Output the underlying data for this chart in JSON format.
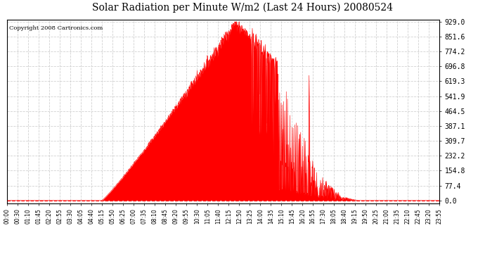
{
  "title": "Solar Radiation per Minute W/m2 (Last 24 Hours) 20080524",
  "copyright": "Copyright 2008 Cartronics.com",
  "background_color": "#ffffff",
  "fill_color": "#ff0000",
  "line_color": "#ff0000",
  "dashed_line_color": "#ff0000",
  "grid_color": "#cccccc",
  "y_ticks": [
    0.0,
    77.4,
    154.8,
    232.2,
    309.7,
    387.1,
    464.5,
    541.9,
    619.3,
    696.8,
    774.2,
    851.6,
    929.0
  ],
  "x_tick_labels": [
    "00:00",
    "00:30",
    "01:10",
    "01:45",
    "02:20",
    "02:55",
    "03:30",
    "04:05",
    "04:40",
    "05:15",
    "05:50",
    "06:25",
    "07:00",
    "07:35",
    "08:10",
    "08:45",
    "09:20",
    "09:55",
    "10:30",
    "11:05",
    "11:40",
    "12:15",
    "12:50",
    "13:25",
    "14:00",
    "14:35",
    "15:10",
    "15:45",
    "16:20",
    "16:55",
    "17:30",
    "18:05",
    "18:40",
    "19:15",
    "19:50",
    "20:25",
    "21:00",
    "21:35",
    "22:10",
    "22:45",
    "23:20",
    "23:55"
  ],
  "y_max": 929.0,
  "y_min": -15.0,
  "num_points": 1440,
  "sunrise_min": 315,
  "sunset_min": 1170,
  "peak_min": 760,
  "peak_val": 929.0
}
